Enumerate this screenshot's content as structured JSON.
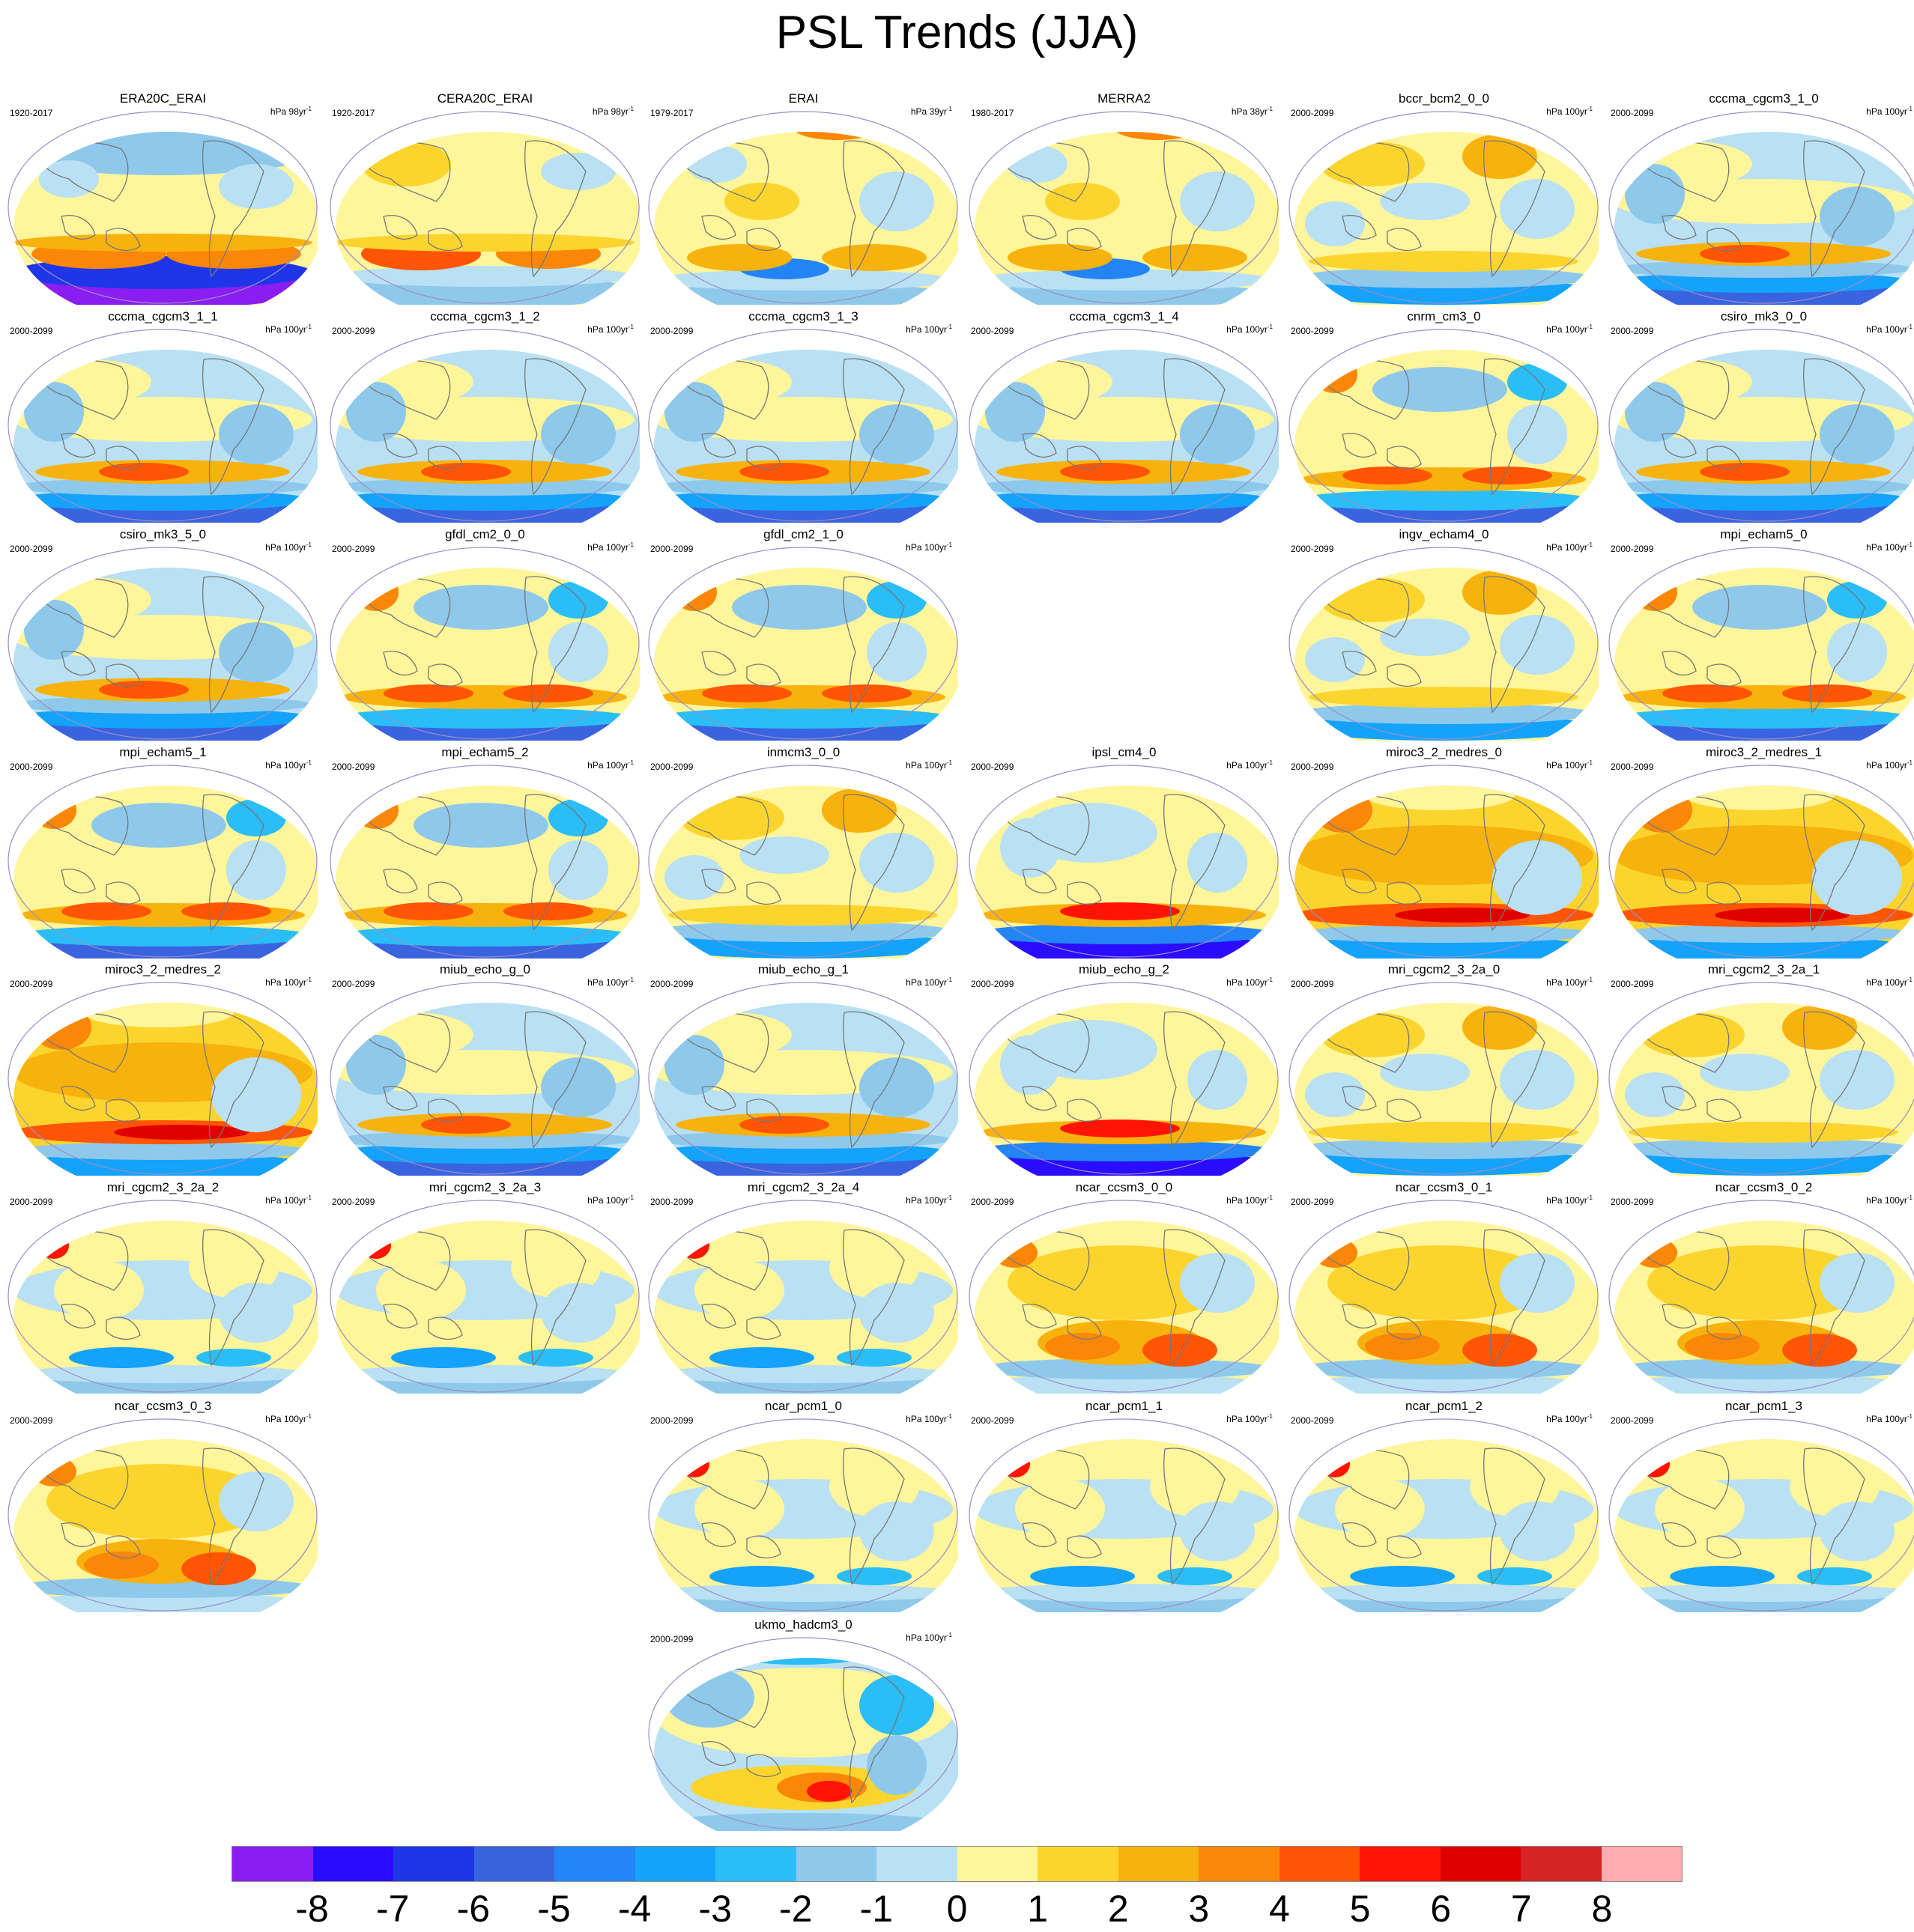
{
  "title": "PSL Trends (JJA)",
  "units_prefix": "hPa",
  "panels": [
    {
      "name": "ERA20C_ERAI",
      "years": "1920-2017",
      "units": "98yr",
      "pattern": "obs_a"
    },
    {
      "name": "CERA20C_ERAI",
      "years": "1920-2017",
      "units": "98yr",
      "pattern": "obs_b"
    },
    {
      "name": "ERAI",
      "years": "1979-2017",
      "units": "39yr",
      "pattern": "obs_c"
    },
    {
      "name": "MERRA2",
      "years": "1980-2017",
      "units": "38yr",
      "pattern": "obs_c"
    },
    {
      "name": "bccr_bcm2_0_0",
      "years": "2000-2099",
      "units": "100yr",
      "pattern": "model_a"
    },
    {
      "name": "cccma_cgcm3_1_0",
      "years": "2000-2099",
      "units": "100yr",
      "pattern": "model_b"
    },
    {
      "name": "cccma_cgcm3_1_1",
      "years": "2000-2099",
      "units": "100yr",
      "pattern": "model_b"
    },
    {
      "name": "cccma_cgcm3_1_2",
      "years": "2000-2099",
      "units": "100yr",
      "pattern": "model_b"
    },
    {
      "name": "cccma_cgcm3_1_3",
      "years": "2000-2099",
      "units": "100yr",
      "pattern": "model_b"
    },
    {
      "name": "cccma_cgcm3_1_4",
      "years": "2000-2099",
      "units": "100yr",
      "pattern": "model_b"
    },
    {
      "name": "cnrm_cm3_0",
      "years": "2000-2099",
      "units": "100yr",
      "pattern": "model_c"
    },
    {
      "name": "csiro_mk3_0_0",
      "years": "2000-2099",
      "units": "100yr",
      "pattern": "model_b"
    },
    {
      "name": "csiro_mk3_5_0",
      "years": "2000-2099",
      "units": "100yr",
      "pattern": "model_b"
    },
    {
      "name": "gfdl_cm2_0_0",
      "years": "2000-2099",
      "units": "100yr",
      "pattern": "model_c"
    },
    {
      "name": "gfdl_cm2_1_0",
      "years": "2000-2099",
      "units": "100yr",
      "pattern": "model_c"
    },
    {
      "name": "ingv_echam4_0",
      "years": "2000-2099",
      "units": "100yr",
      "pattern": "model_a"
    },
    {
      "name": "mpi_echam5_0",
      "years": "2000-2099",
      "units": "100yr",
      "pattern": "model_c"
    },
    {
      "name": "mpi_echam5_1",
      "years": "2000-2099",
      "units": "100yr",
      "pattern": "model_c"
    },
    {
      "name": "mpi_echam5_2",
      "years": "2000-2099",
      "units": "100yr",
      "pattern": "model_c"
    },
    {
      "name": "inmcm3_0_0",
      "years": "2000-2099",
      "units": "100yr",
      "pattern": "model_a"
    },
    {
      "name": "ipsl_cm4_0",
      "years": "2000-2099",
      "units": "100yr",
      "pattern": "model_d"
    },
    {
      "name": "miroc3_2_medres_0",
      "years": "2000-2099",
      "units": "100yr",
      "pattern": "model_e"
    },
    {
      "name": "miroc3_2_medres_1",
      "years": "2000-2099",
      "units": "100yr",
      "pattern": "model_e"
    },
    {
      "name": "miroc3_2_medres_2",
      "years": "2000-2099",
      "units": "100yr",
      "pattern": "model_e"
    },
    {
      "name": "miub_echo_g_0",
      "years": "2000-2099",
      "units": "100yr",
      "pattern": "model_b"
    },
    {
      "name": "miub_echo_g_1",
      "years": "2000-2099",
      "units": "100yr",
      "pattern": "model_b"
    },
    {
      "name": "miub_echo_g_2",
      "years": "2000-2099",
      "units": "100yr",
      "pattern": "model_d"
    },
    {
      "name": "mri_cgcm2_3_2a_0",
      "years": "2000-2099",
      "units": "100yr",
      "pattern": "model_a"
    },
    {
      "name": "mri_cgcm2_3_2a_1",
      "years": "2000-2099",
      "units": "100yr",
      "pattern": "model_a"
    },
    {
      "name": "mri_cgcm2_3_2a_2",
      "years": "2000-2099",
      "units": "100yr",
      "pattern": "model_f"
    },
    {
      "name": "mri_cgcm2_3_2a_3",
      "years": "2000-2099",
      "units": "100yr",
      "pattern": "model_f"
    },
    {
      "name": "mri_cgcm2_3_2a_4",
      "years": "2000-2099",
      "units": "100yr",
      "pattern": "model_f"
    },
    {
      "name": "ncar_ccsm3_0_0",
      "years": "2000-2099",
      "units": "100yr",
      "pattern": "model_g"
    },
    {
      "name": "ncar_ccsm3_0_1",
      "years": "2000-2099",
      "units": "100yr",
      "pattern": "model_g"
    },
    {
      "name": "ncar_ccsm3_0_2",
      "years": "2000-2099",
      "units": "100yr",
      "pattern": "model_g"
    },
    {
      "name": "ncar_ccsm3_0_3",
      "years": "2000-2099",
      "units": "100yr",
      "pattern": "model_g"
    },
    {
      "name": "ncar_pcm1_0",
      "years": "2000-2099",
      "units": "100yr",
      "pattern": "model_f"
    },
    {
      "name": "ncar_pcm1_1",
      "years": "2000-2099",
      "units": "100yr",
      "pattern": "model_f"
    },
    {
      "name": "ncar_pcm1_2",
      "years": "2000-2099",
      "units": "100yr",
      "pattern": "model_f"
    },
    {
      "name": "ncar_pcm1_3",
      "years": "2000-2099",
      "units": "100yr",
      "pattern": "model_f"
    },
    {
      "name": "ukmo_hadcm3_0",
      "years": "2000-2099",
      "units": "100yr",
      "pattern": "model_h"
    }
  ],
  "colorbar": {
    "colors": [
      "#8a1ef0",
      "#2a0cff",
      "#1f36e8",
      "#3a63e0",
      "#2385f5",
      "#14a2fb",
      "#2bbdf7",
      "#8ec9ec",
      "#b9e1f3",
      "#fff59a",
      "#fbd52e",
      "#f8b20e",
      "#fb8708",
      "#ff5505",
      "#ff1405",
      "#e00000",
      "#d42525",
      "#ffadb0"
    ],
    "labels": [
      "-8",
      "-7",
      "-6",
      "-5",
      "-4",
      "-3",
      "-2",
      "-1",
      "0",
      "1",
      "2",
      "3",
      "4",
      "5",
      "6",
      "7",
      "8"
    ]
  }
}
